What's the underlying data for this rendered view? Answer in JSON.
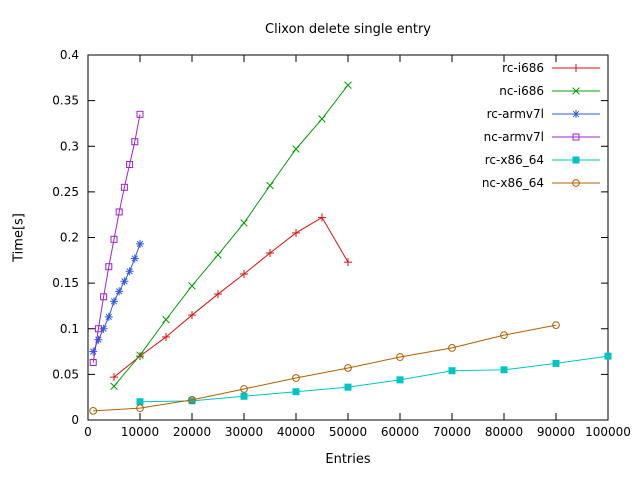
{
  "chart_data": {
    "type": "line",
    "title": "Clixon delete single entry",
    "xlabel": "Entries",
    "ylabel": "Time[s]",
    "xlim": [
      0,
      100000
    ],
    "ylim": [
      0,
      0.4
    ],
    "grid": false,
    "legend_position": "top-right-inside",
    "xticks": {
      "values": [
        0,
        10000,
        20000,
        30000,
        40000,
        50000,
        60000,
        70000,
        80000,
        90000,
        100000
      ],
      "labels": [
        "0",
        "10000",
        "20000",
        "30000",
        "40000",
        "50000",
        "60000",
        "70000",
        "80000",
        "90000",
        "100000"
      ]
    },
    "yticks": {
      "values": [
        0,
        0.05,
        0.1,
        0.15,
        0.2,
        0.25,
        0.3,
        0.35,
        0.4
      ],
      "labels": [
        "0",
        "0.05",
        "0.1",
        "0.15",
        "0.2",
        "0.25",
        "0.3",
        "0.35",
        "0.4"
      ]
    },
    "series": [
      {
        "name": "rc-i686",
        "color": "#dd1111",
        "marker": "plus",
        "x": [
          5000,
          10000,
          15000,
          20000,
          25000,
          30000,
          35000,
          40000,
          45000,
          50000
        ],
        "y": [
          0.047,
          0.07,
          0.091,
          0.115,
          0.138,
          0.16,
          0.183,
          0.205,
          0.222,
          0.173
        ]
      },
      {
        "name": "nc-i686",
        "color": "#00a000",
        "marker": "cross",
        "x": [
          5000,
          10000,
          15000,
          20000,
          25000,
          30000,
          35000,
          40000,
          45000,
          50000
        ],
        "y": [
          0.037,
          0.071,
          0.11,
          0.147,
          0.181,
          0.216,
          0.257,
          0.297,
          0.33,
          0.367
        ]
      },
      {
        "name": "rc-armv7l",
        "color": "#2e5ae0",
        "marker": "asterisk",
        "x": [
          1000,
          2000,
          3000,
          4000,
          5000,
          6000,
          7000,
          8000,
          9000,
          10000
        ],
        "y": [
          0.075,
          0.088,
          0.1,
          0.113,
          0.13,
          0.141,
          0.152,
          0.163,
          0.177,
          0.193
        ]
      },
      {
        "name": "nc-armv7l",
        "color": "#a020d0",
        "marker": "open-square",
        "x": [
          1000,
          2000,
          3000,
          4000,
          5000,
          6000,
          7000,
          8000,
          9000,
          10000
        ],
        "y": [
          0.063,
          0.1,
          0.135,
          0.168,
          0.198,
          0.228,
          0.255,
          0.28,
          0.305,
          0.335
        ]
      },
      {
        "name": "rc-x86_64",
        "color": "#00c4c4",
        "marker": "filled-square",
        "x": [
          10000,
          20000,
          30000,
          40000,
          50000,
          60000,
          70000,
          80000,
          90000,
          100000
        ],
        "y": [
          0.02,
          0.021,
          0.026,
          0.031,
          0.036,
          0.044,
          0.054,
          0.055,
          0.062,
          0.07
        ]
      },
      {
        "name": "nc-x86_64",
        "color": "#b06000",
        "marker": "open-circle",
        "x": [
          1000,
          10000,
          20000,
          30000,
          40000,
          50000,
          60000,
          70000,
          80000,
          90000
        ],
        "y": [
          0.01,
          0.013,
          0.022,
          0.034,
          0.046,
          0.057,
          0.069,
          0.079,
          0.093,
          0.104
        ]
      }
    ]
  }
}
